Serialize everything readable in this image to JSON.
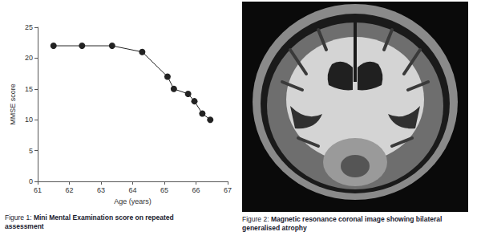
{
  "chart_data": {
    "type": "line",
    "xlabel": "Age (years)",
    "ylabel": "MMSE score",
    "x": [
      61.5,
      62.4,
      63.35,
      64.3,
      65.1,
      65.3,
      65.75,
      65.95,
      66.2,
      66.45
    ],
    "values": [
      22,
      22,
      22,
      21,
      17,
      15,
      14.2,
      13,
      11,
      10
    ],
    "color": "#222222",
    "marker": "circle",
    "line_style": "solid",
    "xlim": [
      61,
      67
    ],
    "xticks": [
      61,
      62,
      63,
      64,
      65,
      66,
      67
    ],
    "ylim": [
      0,
      25
    ],
    "yticks": [
      0,
      5,
      10,
      15,
      20,
      25
    ],
    "grid": false
  },
  "captions": [
    {
      "label": "Figure 1:",
      "text": "Mini Mental Examination score on repeated assessment"
    },
    {
      "label": "Figure 2:",
      "text": "Magnetic resonance coronal image showing bilateral generalised atrophy"
    }
  ]
}
